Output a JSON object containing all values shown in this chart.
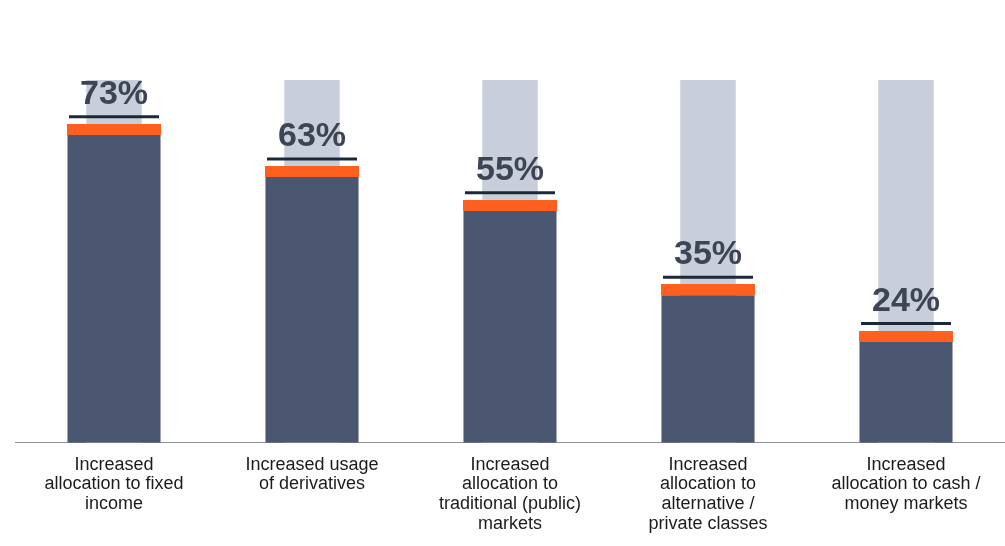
{
  "chart_data": {
    "type": "bar",
    "categories": [
      "Increased allocation to fixed income",
      "Increased usage of derivatives",
      "Increased allocation to traditional (public) markets",
      "Increased allocation to alternative / private classes",
      "Increased allocation to cash / money markets"
    ],
    "series": [
      {
        "color": "#c8cfda",
        "values": [
          86,
          86,
          86,
          86,
          86
        ],
        "value_labels": [
          null,
          null,
          null,
          null,
          null
        ]
      },
      {
        "color": "#4b5670",
        "values": [
          73,
          63,
          55,
          35,
          24
        ],
        "value_labels": [
          "73%",
          "63%",
          "55%",
          "35%",
          "24%"
        ]
      }
    ],
    "tick_labels": "x",
    "grid": false,
    "legend": false
  }
}
